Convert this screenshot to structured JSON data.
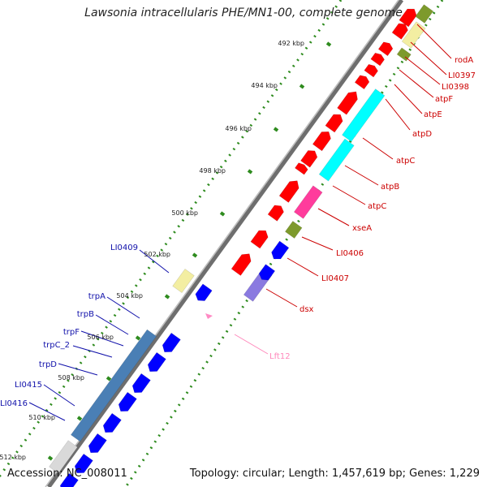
{
  "title": "Lawsonia intracellularis PHE/MN1-00, complete genome",
  "footer": {
    "accession": "Accession: NC_008011",
    "stats": "Topology: circular; Length: 1,457,619 bp; Genes: 1,229"
  },
  "colors": {
    "forward_cds": "#ff0000",
    "reverse_cds": "#0000ff",
    "cog_yellow": "#f3eea2",
    "cog_olive": "#7d9a2c",
    "cog_cyan": "#00ffff",
    "cog_magenta": "#ff3c9c",
    "cog_steelblue": "#4a7fb5",
    "cog_slate": "#8a7ae0",
    "backbone": "#8c8c8c",
    "ticks": "#2e8b1e",
    "label_right": "#cc0000",
    "label_left": "#1010aa",
    "label_trna": "#ff88bb"
  },
  "ruler": [
    {
      "label": "492 kbp"
    },
    {
      "label": "494 kbp"
    },
    {
      "label": "496 kbp"
    },
    {
      "label": "498 kbp"
    },
    {
      "label": "500 kbp"
    },
    {
      "label": "502 kbp"
    },
    {
      "label": "504 kbp"
    },
    {
      "label": "506 kbp"
    },
    {
      "label": "508 kbp"
    },
    {
      "label": "510 kbp"
    },
    {
      "label": "512 kbp"
    }
  ],
  "gene_labels_right": [
    "rodA",
    "LI0397",
    "LI0398",
    "atpF",
    "atpE",
    "atpD",
    "atpC",
    "atpB",
    "atpC",
    "xseA",
    "LI0406",
    "LI0407",
    "dsx"
  ],
  "gene_labels_left": [
    "LI0409",
    "trpA",
    "trpB",
    "trpF",
    "trpC_2",
    "trpD",
    "LI0415",
    "LI0416"
  ],
  "trna_label": "Lft12"
}
